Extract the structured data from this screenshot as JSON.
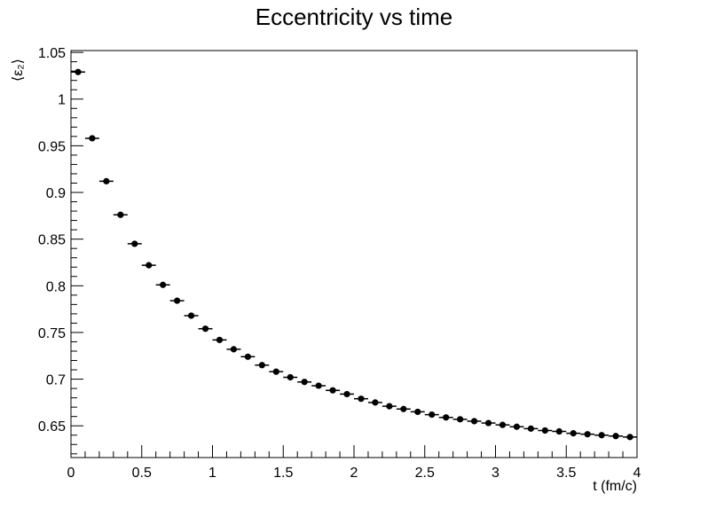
{
  "chart_data": {
    "type": "scatter",
    "title": "Eccentricity vs time",
    "xlabel": "t (fm/c)",
    "ylabel": "⟨ε₂⟩",
    "xlim": [
      0,
      4
    ],
    "ylim": [
      0.616,
      1.052
    ],
    "x_ticks": [
      "0",
      "0.5",
      "1",
      "1.5",
      "2",
      "2.5",
      "3",
      "3.5",
      "4"
    ],
    "y_ticks": [
      "0.65",
      "0.7",
      "0.75",
      "0.8",
      "0.85",
      "0.9",
      "0.95",
      "1",
      "1.05"
    ],
    "marker_color": "#000000",
    "series": [
      {
        "x": [
          0.05,
          0.15,
          0.25,
          0.35,
          0.45,
          0.55,
          0.65,
          0.75,
          0.85,
          0.95,
          1.05,
          1.15,
          1.25,
          1.35,
          1.45,
          1.55,
          1.65,
          1.75,
          1.85,
          1.95,
          2.05,
          2.15,
          2.25,
          2.35,
          2.45,
          2.55,
          2.65,
          2.75,
          2.85,
          2.95,
          3.05,
          3.15,
          3.25,
          3.35,
          3.45,
          3.55,
          3.65,
          3.75,
          3.85,
          3.95
        ],
        "y": [
          1.029,
          0.958,
          0.912,
          0.876,
          0.845,
          0.822,
          0.801,
          0.784,
          0.768,
          0.754,
          0.742,
          0.732,
          0.724,
          0.715,
          0.708,
          0.702,
          0.697,
          0.693,
          0.688,
          0.684,
          0.679,
          0.675,
          0.671,
          0.668,
          0.665,
          0.662,
          0.659,
          0.657,
          0.655,
          0.653,
          0.651,
          0.649,
          0.647,
          0.645,
          0.644,
          0.642,
          0.641,
          0.64,
          0.639,
          0.638
        ]
      }
    ]
  }
}
